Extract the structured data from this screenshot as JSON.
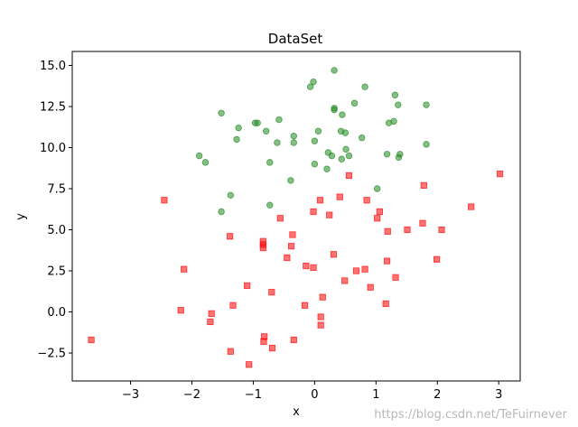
{
  "chart_data": {
    "type": "scatter",
    "title": "DataSet",
    "xlabel": "x",
    "ylabel": "y",
    "xlim": [
      -3.95,
      3.35
    ],
    "ylim": [
      -4.2,
      15.85
    ],
    "xticks": [
      -3,
      -2,
      -1,
      0,
      1,
      2,
      3
    ],
    "yticks": [
      -2.5,
      0.0,
      2.5,
      5.0,
      7.5,
      10.0,
      12.5,
      15.0
    ],
    "ytick_labels": [
      "−2.5",
      "0.0",
      "2.5",
      "5.0",
      "7.5",
      "10.0",
      "12.5",
      "15.0"
    ],
    "xtick_labels": [
      "−3",
      "−2",
      "−1",
      "0",
      "1",
      "2",
      "3"
    ],
    "grid": false,
    "legend": "none",
    "series": [
      {
        "marker": "circle",
        "color": "#228B22",
        "points": [
          [
            -1.52,
            12.1
          ],
          [
            -1.24,
            11.2
          ],
          [
            -0.97,
            11.5
          ],
          [
            -0.93,
            11.5
          ],
          [
            -0.58,
            11.7
          ],
          [
            -1.88,
            9.5
          ],
          [
            -1.78,
            9.1
          ],
          [
            -1.27,
            10.5
          ],
          [
            -0.79,
            11.0
          ],
          [
            -0.61,
            10.3
          ],
          [
            -0.34,
            10.7
          ],
          [
            -0.34,
            10.3
          ],
          [
            -0.73,
            9.1
          ],
          [
            -0.39,
            8.0
          ],
          [
            -1.37,
            7.1
          ],
          [
            -0.73,
            6.5
          ],
          [
            -1.52,
            6.1
          ],
          [
            -0.07,
            13.7
          ],
          [
            -0.02,
            14.0
          ],
          [
            0.32,
            14.7
          ],
          [
            0.32,
            12.3
          ],
          [
            0.32,
            12.4
          ],
          [
            0.45,
            12.0
          ],
          [
            0.65,
            12.7
          ],
          [
            0.82,
            13.7
          ],
          [
            0.06,
            11.0
          ],
          [
            0.43,
            11.0
          ],
          [
            0.5,
            10.9
          ],
          [
            0.77,
            10.6
          ],
          [
            0.0,
            10.4
          ],
          [
            0.22,
            9.7
          ],
          [
            0.51,
            9.9
          ],
          [
            0.56,
            9.5
          ],
          [
            0.28,
            9.5
          ],
          [
            0.44,
            9.3
          ],
          [
            0.0,
            9.0
          ],
          [
            0.2,
            8.7
          ],
          [
            1.02,
            7.5
          ],
          [
            1.31,
            13.2
          ],
          [
            1.36,
            12.6
          ],
          [
            1.82,
            12.6
          ],
          [
            1.21,
            11.5
          ],
          [
            1.29,
            11.6
          ],
          [
            1.18,
            9.6
          ],
          [
            1.37,
            9.4
          ],
          [
            1.39,
            9.6
          ],
          [
            1.82,
            10.2
          ]
        ]
      },
      {
        "marker": "square",
        "color": "#FF0000",
        "points": [
          [
            -3.64,
            -1.7
          ],
          [
            -2.45,
            6.8
          ],
          [
            -2.18,
            0.1
          ],
          [
            -2.13,
            2.6
          ],
          [
            -1.68,
            -0.1
          ],
          [
            -1.7,
            -0.6
          ],
          [
            -1.38,
            4.6
          ],
          [
            -1.33,
            0.4
          ],
          [
            -1.37,
            -2.4
          ],
          [
            -1.1,
            1.6
          ],
          [
            -1.07,
            -3.2
          ],
          [
            -0.84,
            4.3
          ],
          [
            -0.84,
            4.1
          ],
          [
            -0.84,
            3.9
          ],
          [
            -0.82,
            -1.5
          ],
          [
            -0.83,
            -1.8
          ],
          [
            -0.7,
            1.2
          ],
          [
            -0.69,
            -2.2
          ],
          [
            -0.56,
            5.7
          ],
          [
            -0.45,
            3.3
          ],
          [
            -0.38,
            4.0
          ],
          [
            -0.36,
            4.7
          ],
          [
            -0.34,
            -1.7
          ],
          [
            -0.16,
            0.4
          ],
          [
            -0.14,
            2.8
          ],
          [
            -0.02,
            6.1
          ],
          [
            -0.02,
            2.7
          ],
          [
            0.09,
            6.8
          ],
          [
            0.1,
            -0.3
          ],
          [
            0.1,
            -0.8
          ],
          [
            0.13,
            0.9
          ],
          [
            0.24,
            5.9
          ],
          [
            0.31,
            3.5
          ],
          [
            0.41,
            7.0
          ],
          [
            0.49,
            1.9
          ],
          [
            0.56,
            8.3
          ],
          [
            0.68,
            2.5
          ],
          [
            0.82,
            2.6
          ],
          [
            0.85,
            6.8
          ],
          [
            0.91,
            1.5
          ],
          [
            1.02,
            5.7
          ],
          [
            1.06,
            6.1
          ],
          [
            1.16,
            0.5
          ],
          [
            1.18,
            3.1
          ],
          [
            1.19,
            4.9
          ],
          [
            1.32,
            2.1
          ],
          [
            1.51,
            5.0
          ],
          [
            1.76,
            5.4
          ],
          [
            1.78,
            7.7
          ],
          [
            1.99,
            3.2
          ],
          [
            2.07,
            5.0
          ],
          [
            2.55,
            6.4
          ],
          [
            3.02,
            8.4
          ]
        ]
      }
    ]
  },
  "watermark": "https://blog.csdn.net/TeFuirnever"
}
